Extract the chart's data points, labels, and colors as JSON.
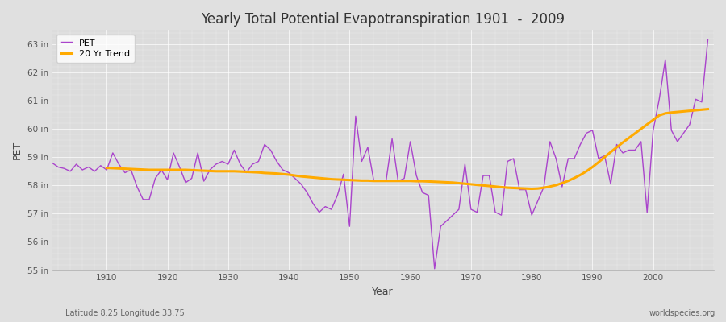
{
  "title": "Yearly Total Potential Evapotranspiration 1901  -  2009",
  "xlabel": "Year",
  "ylabel": "PET",
  "footnote_left": "Latitude 8.25 Longitude 33.75",
  "footnote_right": "worldspecies.org",
  "pet_color": "#aa44cc",
  "trend_color": "#ffaa00",
  "fig_bg_color": "#e0e0e0",
  "plot_bg_color": "#dcdcdc",
  "ylim": [
    55,
    63.5
  ],
  "yticks": [
    55,
    56,
    57,
    58,
    59,
    60,
    61,
    62,
    63
  ],
  "ytick_labels": [
    "55 in",
    "56 in",
    "57 in",
    "58 in",
    "59 in",
    "60 in",
    "61 in",
    "62 in",
    "63 in"
  ],
  "xlim": [
    1901,
    2010
  ],
  "xticks": [
    1910,
    1920,
    1930,
    1940,
    1950,
    1960,
    1970,
    1980,
    1990,
    2000
  ],
  "years": [
    1901,
    1902,
    1903,
    1904,
    1905,
    1906,
    1907,
    1908,
    1909,
    1910,
    1911,
    1912,
    1913,
    1914,
    1915,
    1916,
    1917,
    1918,
    1919,
    1920,
    1921,
    1922,
    1923,
    1924,
    1925,
    1926,
    1927,
    1928,
    1929,
    1930,
    1931,
    1932,
    1933,
    1934,
    1935,
    1936,
    1937,
    1938,
    1939,
    1940,
    1941,
    1942,
    1943,
    1944,
    1945,
    1946,
    1947,
    1948,
    1949,
    1950,
    1951,
    1952,
    1953,
    1954,
    1955,
    1956,
    1957,
    1958,
    1959,
    1960,
    1961,
    1962,
    1963,
    1964,
    1965,
    1966,
    1967,
    1968,
    1969,
    1970,
    1971,
    1972,
    1973,
    1974,
    1975,
    1976,
    1977,
    1978,
    1979,
    1980,
    1981,
    1982,
    1983,
    1984,
    1985,
    1986,
    1987,
    1988,
    1989,
    1990,
    1991,
    1992,
    1993,
    1994,
    1995,
    1996,
    1997,
    1998,
    1999,
    2000,
    2001,
    2002,
    2003,
    2004,
    2005,
    2006,
    2007,
    2008,
    2009
  ],
  "pet_values": [
    58.8,
    58.65,
    58.6,
    58.5,
    58.75,
    58.55,
    58.65,
    58.5,
    58.7,
    58.55,
    59.15,
    58.75,
    58.45,
    58.55,
    57.95,
    57.5,
    57.5,
    58.25,
    58.55,
    58.2,
    59.15,
    58.65,
    58.1,
    58.25,
    59.15,
    58.15,
    58.55,
    58.75,
    58.85,
    58.75,
    59.25,
    58.75,
    58.45,
    58.75,
    58.85,
    59.45,
    59.25,
    58.85,
    58.55,
    58.45,
    58.25,
    58.05,
    57.75,
    57.35,
    57.05,
    57.25,
    57.15,
    57.65,
    58.4,
    56.55,
    60.45,
    58.85,
    59.35,
    58.15,
    58.15,
    58.15,
    59.65,
    58.15,
    58.25,
    59.55,
    58.35,
    57.75,
    57.65,
    55.05,
    56.55,
    56.75,
    56.95,
    57.15,
    58.75,
    57.15,
    57.05,
    58.35,
    58.35,
    57.05,
    56.95,
    58.85,
    58.95,
    57.85,
    57.85,
    56.95,
    57.45,
    57.95,
    59.55,
    58.95,
    57.95,
    58.95,
    58.95,
    59.45,
    59.85,
    59.95,
    58.95,
    59.05,
    58.05,
    59.45,
    59.15,
    59.25,
    59.25,
    59.55,
    57.05,
    59.95,
    61.05,
    62.45,
    59.95,
    59.55,
    59.85,
    60.15,
    61.05,
    60.95,
    63.15
  ],
  "trend_years": [
    1910,
    1911,
    1912,
    1913,
    1914,
    1915,
    1916,
    1917,
    1918,
    1919,
    1920,
    1921,
    1922,
    1923,
    1924,
    1925,
    1926,
    1927,
    1928,
    1929,
    1930,
    1931,
    1932,
    1933,
    1934,
    1935,
    1936,
    1937,
    1938,
    1939,
    1940,
    1941,
    1942,
    1943,
    1944,
    1945,
    1946,
    1947,
    1948,
    1949,
    1950,
    1951,
    1952,
    1953,
    1954,
    1955,
    1956,
    1957,
    1958,
    1959,
    1960,
    1961,
    1962,
    1963,
    1964,
    1965,
    1966,
    1967,
    1968,
    1969,
    1970,
    1971,
    1972,
    1973,
    1974,
    1975,
    1976,
    1977,
    1978,
    1979,
    1980,
    1981,
    1982,
    1983,
    1984,
    1985,
    1986,
    1987,
    1988,
    1989,
    1990,
    1991,
    1992,
    1993,
    1994,
    1995,
    1996,
    1997,
    1998,
    1999,
    2000,
    2001,
    2002,
    2003,
    2004,
    2005,
    2006,
    2007,
    2008,
    2009
  ],
  "trend_values": [
    58.62,
    58.61,
    58.6,
    58.59,
    58.58,
    58.57,
    58.56,
    58.55,
    58.55,
    58.55,
    58.55,
    58.55,
    58.55,
    58.55,
    58.54,
    58.53,
    58.52,
    58.51,
    58.5,
    58.5,
    58.5,
    58.5,
    58.49,
    58.48,
    58.47,
    58.46,
    58.44,
    58.43,
    58.42,
    58.4,
    58.38,
    58.35,
    58.32,
    58.3,
    58.28,
    58.26,
    58.24,
    58.22,
    58.21,
    58.2,
    58.19,
    58.18,
    58.17,
    58.17,
    58.16,
    58.16,
    58.16,
    58.16,
    58.16,
    58.16,
    58.16,
    58.15,
    58.15,
    58.14,
    58.13,
    58.12,
    58.11,
    58.1,
    58.08,
    58.06,
    58.04,
    58.02,
    58.0,
    57.98,
    57.96,
    57.94,
    57.92,
    57.91,
    57.9,
    57.89,
    57.88,
    57.89,
    57.92,
    57.96,
    58.01,
    58.08,
    58.16,
    58.26,
    58.37,
    58.5,
    58.65,
    58.82,
    59.0,
    59.18,
    59.35,
    59.52,
    59.68,
    59.84,
    60.0,
    60.16,
    60.32,
    60.48,
    60.55,
    60.58,
    60.6,
    60.62,
    60.64,
    60.66,
    60.68,
    60.7
  ]
}
